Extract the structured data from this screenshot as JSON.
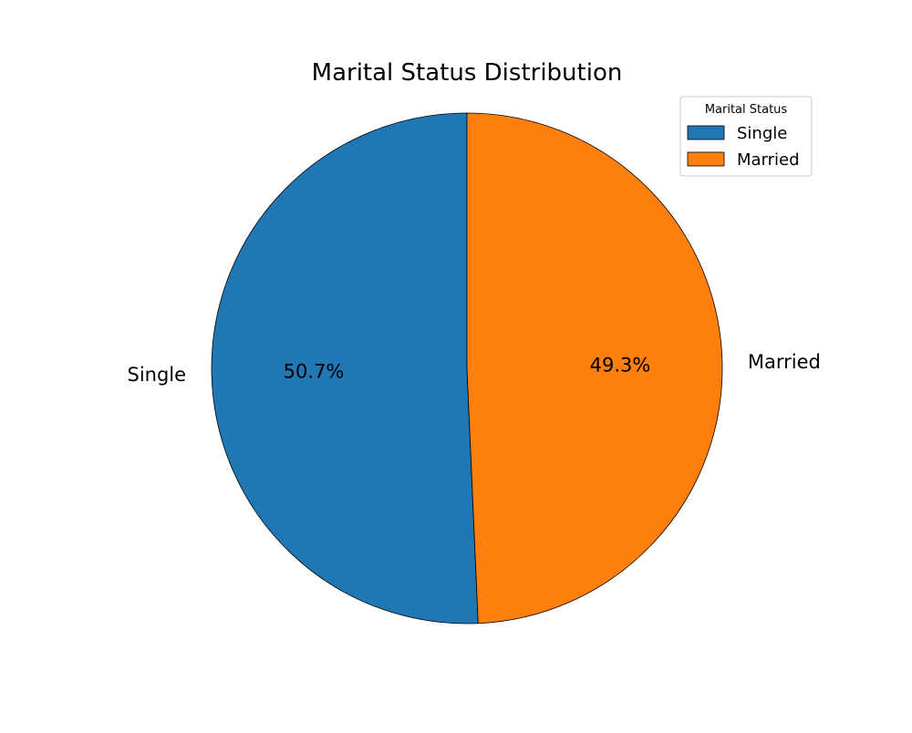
{
  "chart_data": {
    "type": "pie",
    "title": "Marital Status Distribution",
    "categories": [
      "Single",
      "Married"
    ],
    "values": [
      50.7,
      49.3
    ],
    "value_labels": [
      "50.7%",
      "49.3%"
    ],
    "colors": [
      "#1f77b4",
      "#ff7f0e"
    ],
    "start_angle_deg": 90,
    "direction": "counterclockwise",
    "legend": {
      "title": "Marital Status",
      "position": "top-right",
      "entries": [
        "Single",
        "Married"
      ]
    }
  }
}
